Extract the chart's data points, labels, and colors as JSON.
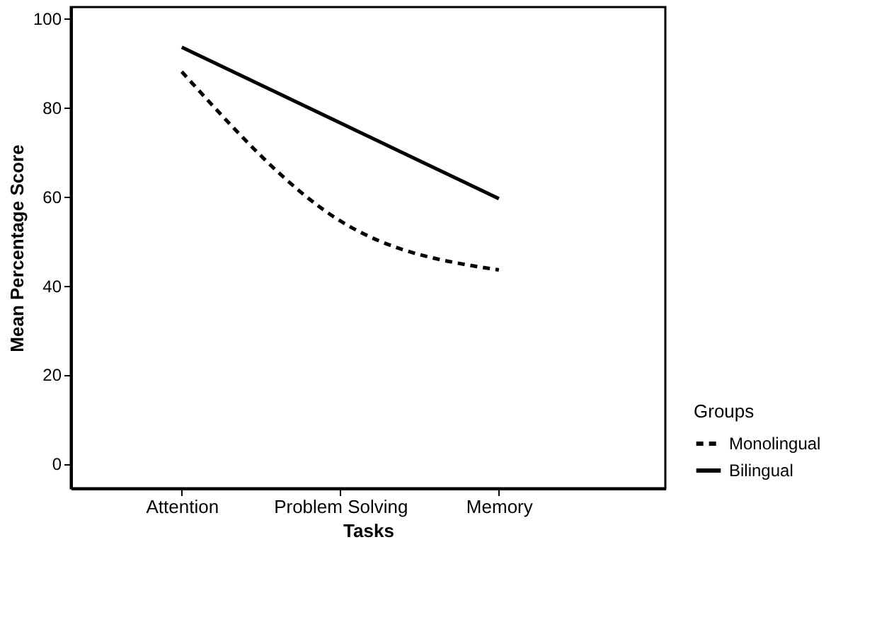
{
  "chart_data": {
    "type": "line",
    "xlabel": "Tasks",
    "ylabel": "Mean Percentage Score",
    "legend_title": "Groups",
    "legend": "bottom right",
    "categories": [
      "Attention",
      "Problem Solving",
      "Memory"
    ],
    "ylim": [
      -5.5,
      102.5
    ],
    "yticks": [
      0,
      20,
      40,
      60,
      80,
      100
    ],
    "grid": false,
    "marker": "none",
    "series": [
      {
        "name": "Monolingual",
        "color": "#000000",
        "line_style": "dashed",
        "values": [
          88,
          54.5,
          43.5
        ]
      },
      {
        "name": "Bilingual",
        "color": "#000000",
        "line_style": "solid",
        "values": [
          93.5,
          76.5,
          59.5
        ]
      }
    ]
  }
}
